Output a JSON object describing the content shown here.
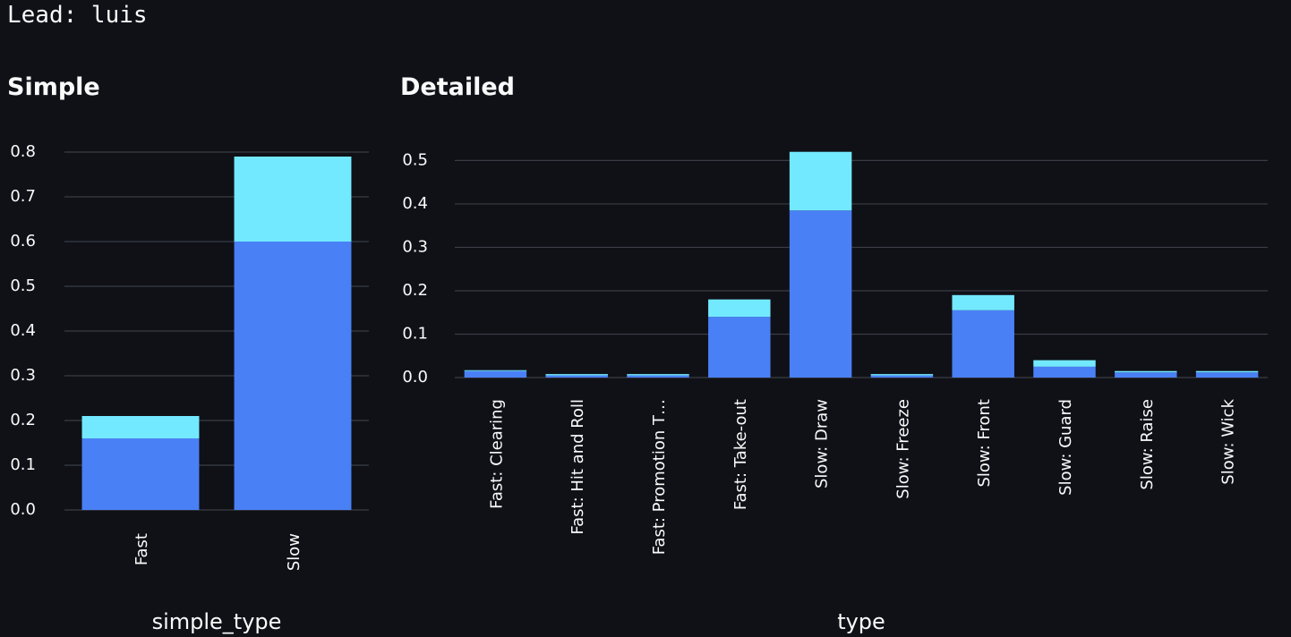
{
  "header": {
    "lead_text": "Lead: luis"
  },
  "panels": {
    "simple_title": "Simple",
    "detailed_title": "Detailed"
  },
  "colors": {
    "background": "#0f1117",
    "bar_base": "#4a80f5",
    "bar_top": "#73e9ff",
    "grid": "#3a3d46",
    "text": "#fafafa"
  },
  "chart_data": [
    {
      "type": "bar",
      "stacked": true,
      "title": "Simple",
      "xlabel": "simple_type",
      "ylabel": "",
      "ylim": [
        0,
        0.82
      ],
      "yticks": [
        0.0,
        0.1,
        0.2,
        0.3,
        0.4,
        0.5,
        0.6,
        0.7,
        0.8
      ],
      "tick_labels": [
        "0.0",
        "0.1",
        "0.2",
        "0.3",
        "0.4",
        "0.5",
        "0.6",
        "0.7",
        "0.8"
      ],
      "grid": true,
      "legend": "none",
      "categories": [
        "Fast",
        "Slow"
      ],
      "series": [
        {
          "values": [
            0.16,
            0.6
          ]
        },
        {
          "values": [
            0.05,
            0.19
          ]
        }
      ]
    },
    {
      "type": "bar",
      "stacked": true,
      "title": "Detailed",
      "xlabel": "type",
      "ylabel": "",
      "ylim": [
        0,
        0.54
      ],
      "yticks": [
        0.0,
        0.1,
        0.2,
        0.3,
        0.4,
        0.5
      ],
      "tick_labels": [
        "0.0",
        "0.1",
        "0.2",
        "0.3",
        "0.4",
        "0.5"
      ],
      "grid": true,
      "legend": "none",
      "categories": [
        "Fast: Clearing",
        "Fast: Hit and Roll",
        "Fast: Promotion T…",
        "Fast: Take-out",
        "Slow: Draw",
        "Slow: Freeze",
        "Slow: Front",
        "Slow: Guard",
        "Slow: Raise",
        "Slow: Wick"
      ],
      "series": [
        {
          "values": [
            0.015,
            0.005,
            0.005,
            0.14,
            0.385,
            0.005,
            0.155,
            0.025,
            0.012,
            0.012
          ]
        },
        {
          "values": [
            0.002,
            0.003,
            0.003,
            0.04,
            0.135,
            0.003,
            0.035,
            0.015,
            0.003,
            0.003
          ]
        }
      ]
    }
  ]
}
